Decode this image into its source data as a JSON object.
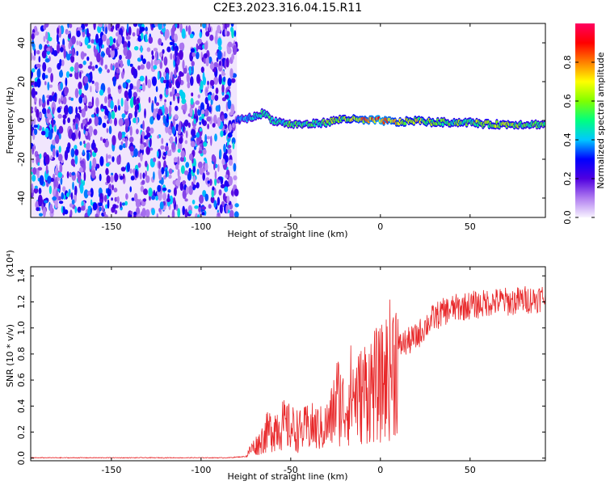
{
  "title": "C2E3.2023.316.04.15.R11",
  "top_chart": {
    "type": "heatmap",
    "xlabel": "Height of straight line (km)",
    "ylabel": "Frequency (Hz)",
    "xlim": [
      -195,
      92
    ],
    "ylim": [
      -50,
      50
    ],
    "x_ticks": [
      "-150",
      "-100",
      "-50",
      "0",
      "50"
    ],
    "x_tick_values": [
      -150,
      -100,
      -50,
      0,
      50
    ],
    "y_ticks": [
      "-40",
      "-20",
      "0",
      "20",
      "40"
    ],
    "y_tick_values": [
      -40,
      -20,
      0,
      20,
      40
    ],
    "colorbar": {
      "label": "Normalized spectral amplitude",
      "range": [
        0,
        1
      ],
      "ticks": [
        "0.0",
        "0.2",
        "0.4",
        "0.6",
        "0.8"
      ],
      "tick_values": [
        0.0,
        0.2,
        0.4,
        0.6,
        0.8
      ],
      "colormap": [
        "#f8f3ff",
        "#b07cf0",
        "#5000e0",
        "#0000ff",
        "#00c8ff",
        "#00ff80",
        "#80ff00",
        "#ffff00",
        "#ff8000",
        "#ff0000",
        "#ff0060"
      ]
    },
    "noise_region_x": [
      -195,
      -80
    ],
    "signal_track": {
      "x": [
        -80,
        -70,
        -65,
        -60,
        -50,
        -40,
        -30,
        -20,
        -10,
        0,
        10,
        20,
        30,
        40,
        50,
        60,
        70,
        80,
        92
      ],
      "frequency": [
        0,
        2,
        4,
        0,
        -2,
        -2,
        -1,
        1,
        0,
        0,
        -1,
        0,
        -1,
        -1,
        -1,
        -2,
        -2,
        -2,
        -2
      ],
      "amplitude": [
        0.35,
        0.45,
        0.5,
        0.45,
        0.5,
        0.5,
        0.55,
        0.6,
        0.75,
        0.85,
        0.7,
        0.65,
        0.6,
        0.55,
        0.55,
        0.6,
        0.6,
        0.55,
        0.5
      ]
    }
  },
  "bottom_chart": {
    "type": "line",
    "xlabel": "Height of straight line (km)",
    "ylabel": "SNR (10 * v/v)",
    "y_multiplier": "(x10⁴)",
    "xlim": [
      -195,
      92
    ],
    "ylim": [
      -0.02,
      1.47
    ],
    "x_ticks": [
      "-150",
      "-100",
      "-50",
      "0",
      "50"
    ],
    "x_tick_values": [
      -150,
      -100,
      -50,
      0,
      50
    ],
    "y_ticks": [
      "0.0",
      "0.2",
      "0.4",
      "0.6",
      "0.8",
      "1.0",
      "1.2",
      "1.4"
    ],
    "y_tick_values": [
      0.0,
      0.2,
      0.4,
      0.6,
      0.8,
      1.0,
      1.2,
      1.4
    ],
    "series_color": "#e8282a",
    "series": [
      {
        "x": [
          -195,
          -180,
          -160,
          -140,
          -120,
          -100,
          -85,
          -75,
          -72,
          -68,
          -64,
          -60,
          -56,
          -52,
          -48,
          -44,
          -40,
          -36,
          -32,
          -28,
          -24,
          -20,
          -16,
          -12,
          -8,
          -4,
          0,
          4,
          8,
          12,
          16,
          20,
          24,
          28,
          32,
          36,
          40,
          44,
          48,
          52,
          56,
          60,
          64,
          68,
          72,
          76,
          80,
          84,
          88,
          92
        ],
        "values": [
          0.0,
          0.0,
          0.0,
          0.0,
          0.0,
          0.0,
          0.0,
          0.01,
          0.08,
          0.12,
          0.2,
          0.25,
          0.28,
          0.26,
          0.24,
          0.22,
          0.26,
          0.25,
          0.24,
          0.3,
          0.5,
          0.4,
          0.55,
          0.5,
          0.58,
          0.6,
          0.6,
          0.7,
          0.82,
          0.9,
          0.92,
          0.95,
          1.02,
          1.08,
          1.12,
          1.15,
          1.17,
          1.18,
          1.19,
          1.2,
          1.2,
          1.22,
          1.22,
          1.23,
          1.22,
          1.23,
          1.24,
          1.24,
          1.25,
          1.26
        ]
      }
    ]
  }
}
